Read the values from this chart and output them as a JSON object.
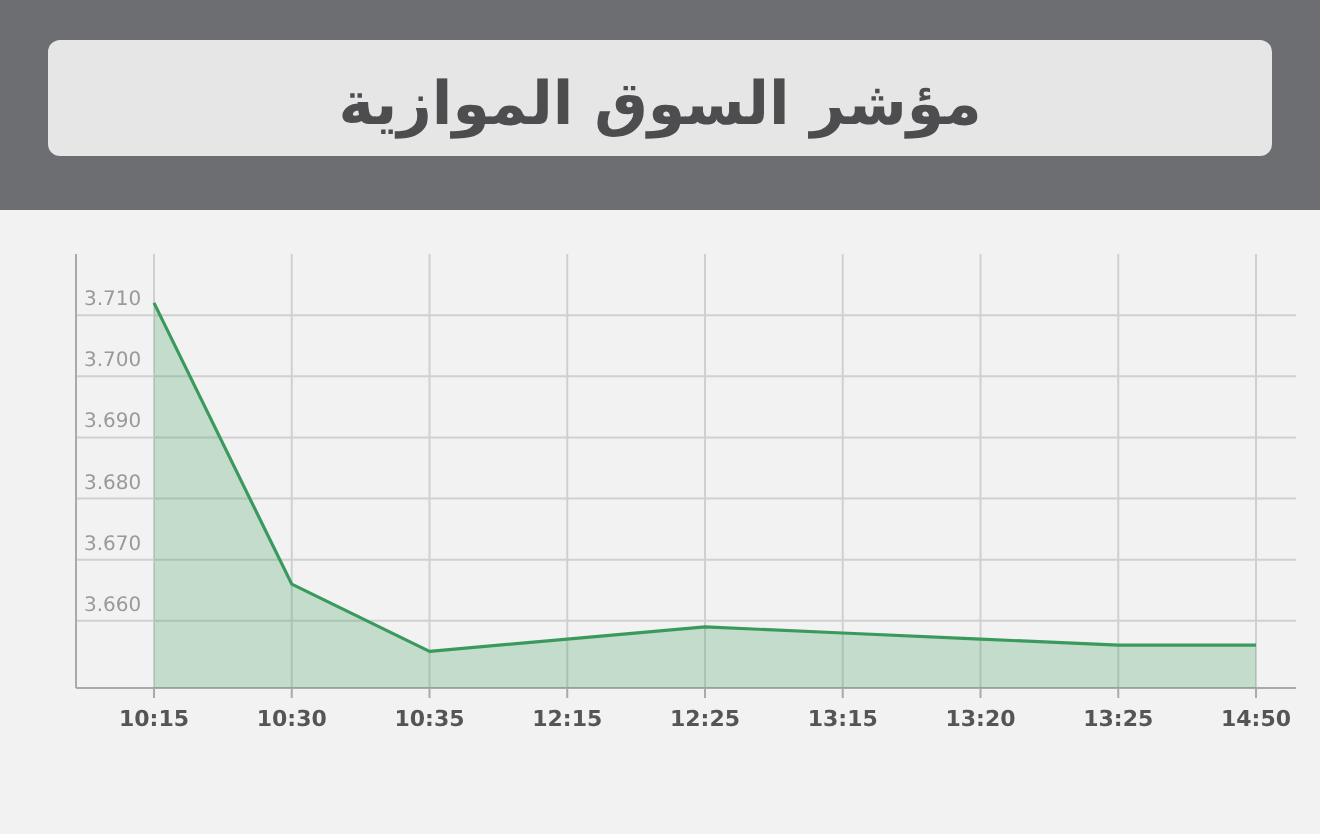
{
  "chart_data": {
    "type": "area",
    "title": "مؤشر السوق الموازية",
    "categories": [
      "10:15",
      "10:30",
      "10:35",
      "12:15",
      "12:25",
      "13:15",
      "13:20",
      "13:25",
      "14:50"
    ],
    "series": [
      {
        "color": "#3a9a5c",
        "values": [
          3.712,
          3.666,
          3.655,
          3.657,
          3.659,
          3.658,
          3.657,
          3.656,
          3.656
        ]
      }
    ],
    "ylim": [
      3.649,
      3.72
    ],
    "yticks": [
      {
        "value": 3.66,
        "label": "3.660"
      },
      {
        "value": 3.67,
        "label": "3.670"
      },
      {
        "value": 3.68,
        "label": "3.680"
      },
      {
        "value": 3.69,
        "label": "3.690"
      },
      {
        "value": 3.7,
        "label": "3.700"
      },
      {
        "value": 3.71,
        "label": "3.710"
      }
    ],
    "grid": true
  }
}
